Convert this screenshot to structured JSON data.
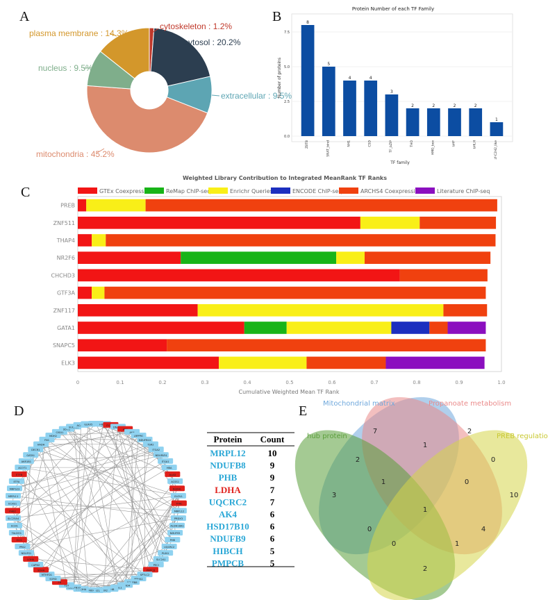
{
  "panel_letters": {
    "a": "A",
    "b": "B",
    "c": "C",
    "d": "D",
    "e": "E"
  },
  "chart_data": [
    {
      "type": "pie",
      "id": "A",
      "donut": true,
      "title": "",
      "slices": [
        {
          "label": "cytoskeleton : 1.2%",
          "value": 1.2,
          "color": "#c0392b"
        },
        {
          "label": "cytosol : 20.2%",
          "value": 20.2,
          "color": "#2c3e50"
        },
        {
          "label": "extracellular : 9.5%",
          "value": 9.5,
          "color": "#5da5b3"
        },
        {
          "label": "mitochondria : 45.2%",
          "value": 45.2,
          "color": "#dc8b6e"
        },
        {
          "label": "nucleus : 9.5%",
          "value": 9.5,
          "color": "#7fae8b"
        },
        {
          "label": "plasma membrane : 14.3%",
          "value": 14.3,
          "color": "#d3972b"
        }
      ]
    },
    {
      "type": "bar",
      "id": "B",
      "title": "Protein Number of each TF Family",
      "xlabel": "TF family",
      "ylabel": "Number of proteins",
      "categories": [
        "ZBTB",
        "SNAT_bind",
        "NH1",
        "CSD",
        "TF_bZIP",
        "THO",
        "HMG_box",
        "bHF",
        "bHLH",
        "zf-C2H2_like"
      ],
      "values": [
        8,
        5,
        4,
        4,
        3,
        2,
        2,
        2,
        2,
        1
      ],
      "ylim": [
        0,
        8.4
      ],
      "yticks": [
        "0.0",
        "2.5",
        "5.0",
        "7.5"
      ],
      "color": "#0c4da2"
    },
    {
      "type": "bar",
      "id": "C",
      "orientation": "horizontal-stacked",
      "title": "Weighted Library Contribution to Integrated MeanRank TF Ranks",
      "xlabel": "Cumulative Weighted Mean TF Rank",
      "xlim": [
        0,
        1.0
      ],
      "xticks": [
        "0",
        "0.1",
        "0.2",
        "0.3",
        "0.4",
        "0.5",
        "0.6",
        "0.7",
        "0.8",
        "0.9",
        "1.0"
      ],
      "legend": [
        {
          "name": "GTEx Coexpression",
          "color": "#f21515"
        },
        {
          "name": "ReMap ChIP-seq",
          "color": "#18b418"
        },
        {
          "name": "Enrichr Queries",
          "color": "#f9ef18"
        },
        {
          "name": "ENCODE ChIP-seq",
          "color": "#1c2fbf"
        },
        {
          "name": "ARCHS4 Coexpression",
          "color": "#f0410f"
        },
        {
          "name": "Literature ChIP-seq",
          "color": "#8b0fbf"
        }
      ],
      "categories": [
        "PREB",
        "ZNF511",
        "THAP4",
        "NR2F6",
        "CHCHD3",
        "GTF3A",
        "ZNF117",
        "GATA1",
        "SNAPC5",
        "ELK3"
      ],
      "series": [
        {
          "name": "GTEx Coexpression",
          "values": [
            0.02,
            0.667,
            0.033,
            0.243,
            0.76,
            0.033,
            0.283,
            0.393,
            0.21,
            0.333
          ]
        },
        {
          "name": "ReMap ChIP-seq",
          "values": [
            0,
            0,
            0,
            0.367,
            0,
            0,
            0,
            0.1,
            0,
            0
          ]
        },
        {
          "name": "Enrichr Queries",
          "values": [
            0.14,
            0.14,
            0.033,
            0.067,
            0,
            0.03,
            0.58,
            0.247,
            0,
            0.207
          ]
        },
        {
          "name": "ENCODE ChIP-seq",
          "values": [
            0,
            0,
            0,
            0,
            0,
            0,
            0,
            0.09,
            0,
            0
          ]
        },
        {
          "name": "ARCHS4 Coexpression",
          "values": [
            0.83,
            0.18,
            0.92,
            0.297,
            0.207,
            0.9,
            0.103,
            0.043,
            0.753,
            0.187
          ]
        },
        {
          "name": "Literature ChIP-seq",
          "values": [
            0,
            0,
            0,
            0,
            0,
            0,
            0,
            0.09,
            0,
            0.233
          ]
        }
      ]
    },
    {
      "type": "table",
      "id": "D",
      "columns": [
        "Protein",
        "Count"
      ],
      "rows": [
        {
          "protein": "MRPL12",
          "count": "10",
          "highlight": false
        },
        {
          "protein": "NDUFB8",
          "count": "9",
          "highlight": false
        },
        {
          "protein": "PHB",
          "count": "9",
          "highlight": false
        },
        {
          "protein": "LDHA",
          "count": "7",
          "highlight": true
        },
        {
          "protein": "UQCRC2",
          "count": "7",
          "highlight": false
        },
        {
          "protein": "AK4",
          "count": "6",
          "highlight": false
        },
        {
          "protein": "HSD17B10",
          "count": "6",
          "highlight": false
        },
        {
          "protein": "NDUFB9",
          "count": "6",
          "highlight": false
        },
        {
          "protein": "HIBCH",
          "count": "5",
          "highlight": false
        },
        {
          "protein": "PMPCB",
          "count": "5",
          "highlight": false
        }
      ]
    }
  ],
  "network": {
    "nodes": [
      "TIMM44",
      "HIBCH",
      "ITGA2B",
      "DNAJC1",
      "AK3",
      "AK4",
      "LRPPRC",
      "NDUFB10",
      "TSR2",
      "ITGA2",
      "NDUFAF4",
      "ITGA1",
      "HBA",
      "ALAD",
      "ACSS1",
      "NSDHL",
      "ELOVL",
      "TFRC",
      "MRPL12",
      "PRDX3",
      "ALDH18A1",
      "NDUFS5",
      "PHB",
      "UQCRC2",
      "PLIN1",
      "SLC2A1",
      "PECI",
      "PMPCB",
      "SPTLC2",
      "PDHA1",
      "NDUFB8",
      "STARD4",
      "ACSL1",
      "PDHB",
      "SHOX2",
      "ACAT1",
      "NDUFB9",
      "BCKDHA",
      "HSD17B10",
      "TST",
      "FH",
      "SORD",
      "MTHFD1",
      "SDHA",
      "CAPN2",
      "LDHA",
      "NDUFS1",
      "PPA2",
      "ECI1",
      "TALDO1",
      "ECH1",
      "SLC25A4",
      "PHB2",
      "ECHS1",
      "MRPL11",
      "MRPS23",
      "ETFA",
      "ETFB",
      "ACOT1",
      "AKR1B1",
      "GATA1",
      "DECR1",
      "HADH",
      "FN1",
      "MDH2",
      "CISD1",
      "SDHB",
      "SUCLG1",
      "ACAA2",
      "GLRX5"
    ],
    "highlighted": [
      2,
      4,
      13,
      15,
      17,
      27,
      40,
      43,
      45,
      48,
      52,
      57
    ]
  },
  "venn": {
    "sets": [
      {
        "name": "Mitochondrial matrix",
        "color": "#6fa8dc"
      },
      {
        "name": "Propanoate metabolism",
        "color": "#ea8a8a"
      },
      {
        "name": "hub protein",
        "color": "#5a9e3a"
      },
      {
        "name": "PREB regulation",
        "color": "#d6d64a"
      }
    ],
    "counts": {
      "mm_only": "7",
      "pm_only": "2",
      "hub_only": "3",
      "preb_only": "10",
      "mm_pm": "1",
      "mm_hub": "2",
      "pm_preb": "0",
      "hub_preb": "2",
      "mm_pm_hub": "1",
      "mm_pm_preb": "0",
      "mm_hub_preb": "4",
      "pm_hub_preb": "0",
      "all": "1",
      "mm_preb": "1",
      "pm_hub": "0"
    }
  }
}
